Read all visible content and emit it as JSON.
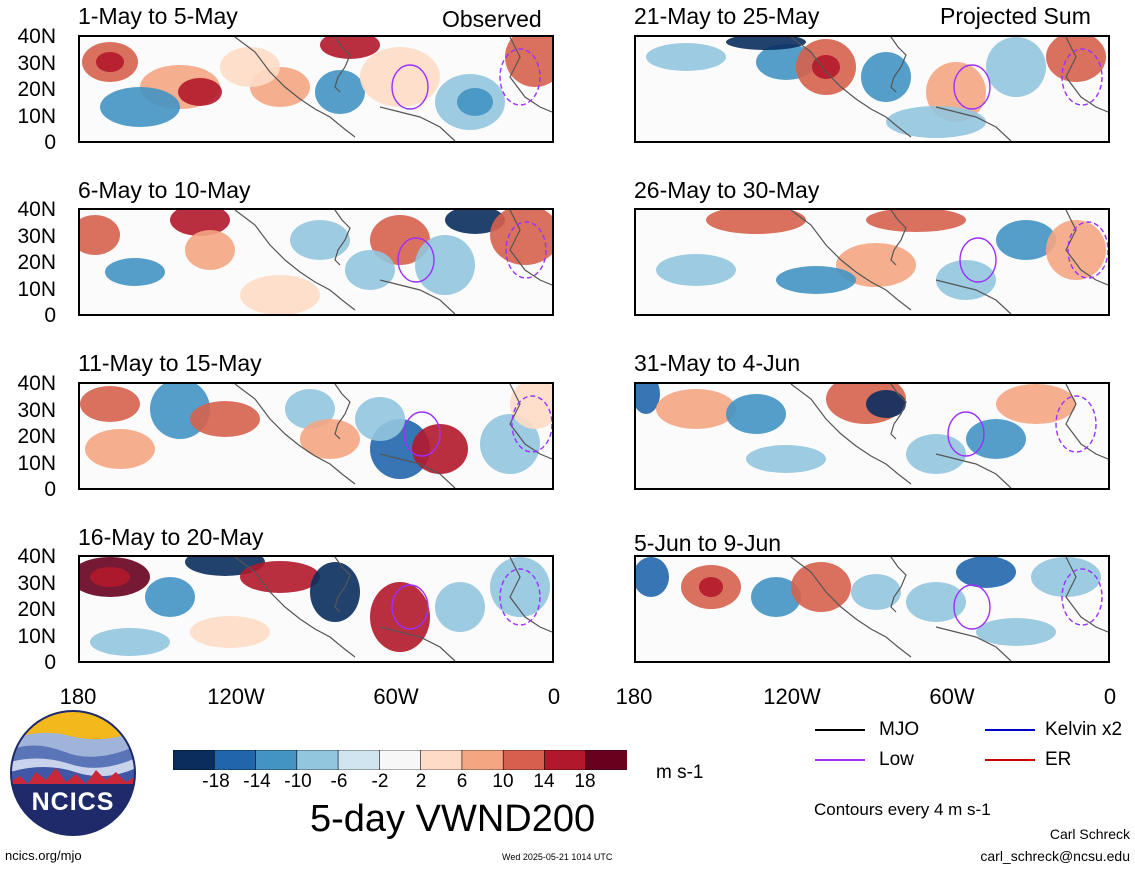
{
  "column_labels": {
    "left": "Observed",
    "right": "Projected Sum"
  },
  "panels": [
    {
      "title": "1-May to 5-May"
    },
    {
      "title": "6-May to 10-May"
    },
    {
      "title": "11-May to 15-May"
    },
    {
      "title": "16-May to 20-May"
    },
    {
      "title": "21-May to 25-May"
    },
    {
      "title": "26-May to 30-May"
    },
    {
      "title": "31-May to 4-Jun"
    },
    {
      "title": "5-Jun to 9-Jun"
    }
  ],
  "y_ticks": [
    "40N",
    "30N",
    "20N",
    "10N",
    "0"
  ],
  "x_ticks": [
    "180",
    "120W",
    "60W",
    "0"
  ],
  "colorbar": {
    "labels": [
      "-18",
      "-14",
      "-10",
      "-6",
      "-2",
      "2",
      "6",
      "10",
      "14",
      "18"
    ],
    "colors": [
      "#0a2d5e",
      "#2166ac",
      "#4393c3",
      "#92c5de",
      "#d1e5f0",
      "#f7f7f7",
      "#fddbc7",
      "#f4a582",
      "#d6604d",
      "#b2182b",
      "#67001f"
    ],
    "units": "m s-1"
  },
  "main_title": "5-day VWND200",
  "legend": [
    {
      "label": "MJO",
      "color": "#000000"
    },
    {
      "label": "Kelvin x2",
      "color": "#0000cc"
    },
    {
      "label": "Low",
      "color": "#9b30ff"
    },
    {
      "label": "ER",
      "color": "#cc0000"
    }
  ],
  "contour_note": "Contours every 4 m s-1",
  "author": "Carl Schreck",
  "email": "carl_schreck@ncsu.edu",
  "website": "ncics.org/mjo",
  "timestamp": "Wed 2025-05-21 1014 UTC",
  "logo_text": "NCICS"
}
